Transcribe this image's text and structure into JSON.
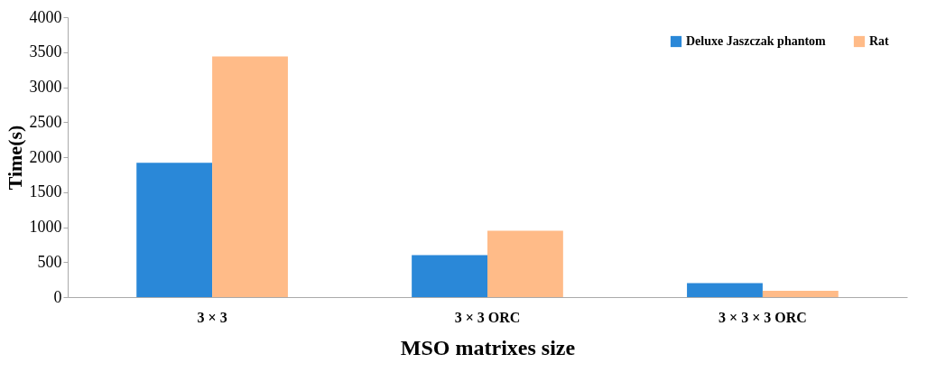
{
  "chart_data": {
    "type": "bar",
    "xlabel": "MSO matrixes size",
    "ylabel": "Time(s)",
    "categories": [
      "3 × 3",
      "3 × 3 ORC",
      "3 × 3 × 3 ORC"
    ],
    "series": [
      {
        "name": "Deluxe Jaszczak phantom",
        "color": "#2a88d8",
        "values": [
          1920,
          600,
          200
        ]
      },
      {
        "name": "Rat",
        "color": "#ffbb88",
        "values": [
          3440,
          950,
          90
        ]
      }
    ],
    "ylim": [
      0,
      4000
    ],
    "yticks": [
      0,
      500,
      1000,
      1500,
      2000,
      2500,
      3000,
      3500,
      4000
    ],
    "grid": false,
    "legend": "top right"
  }
}
